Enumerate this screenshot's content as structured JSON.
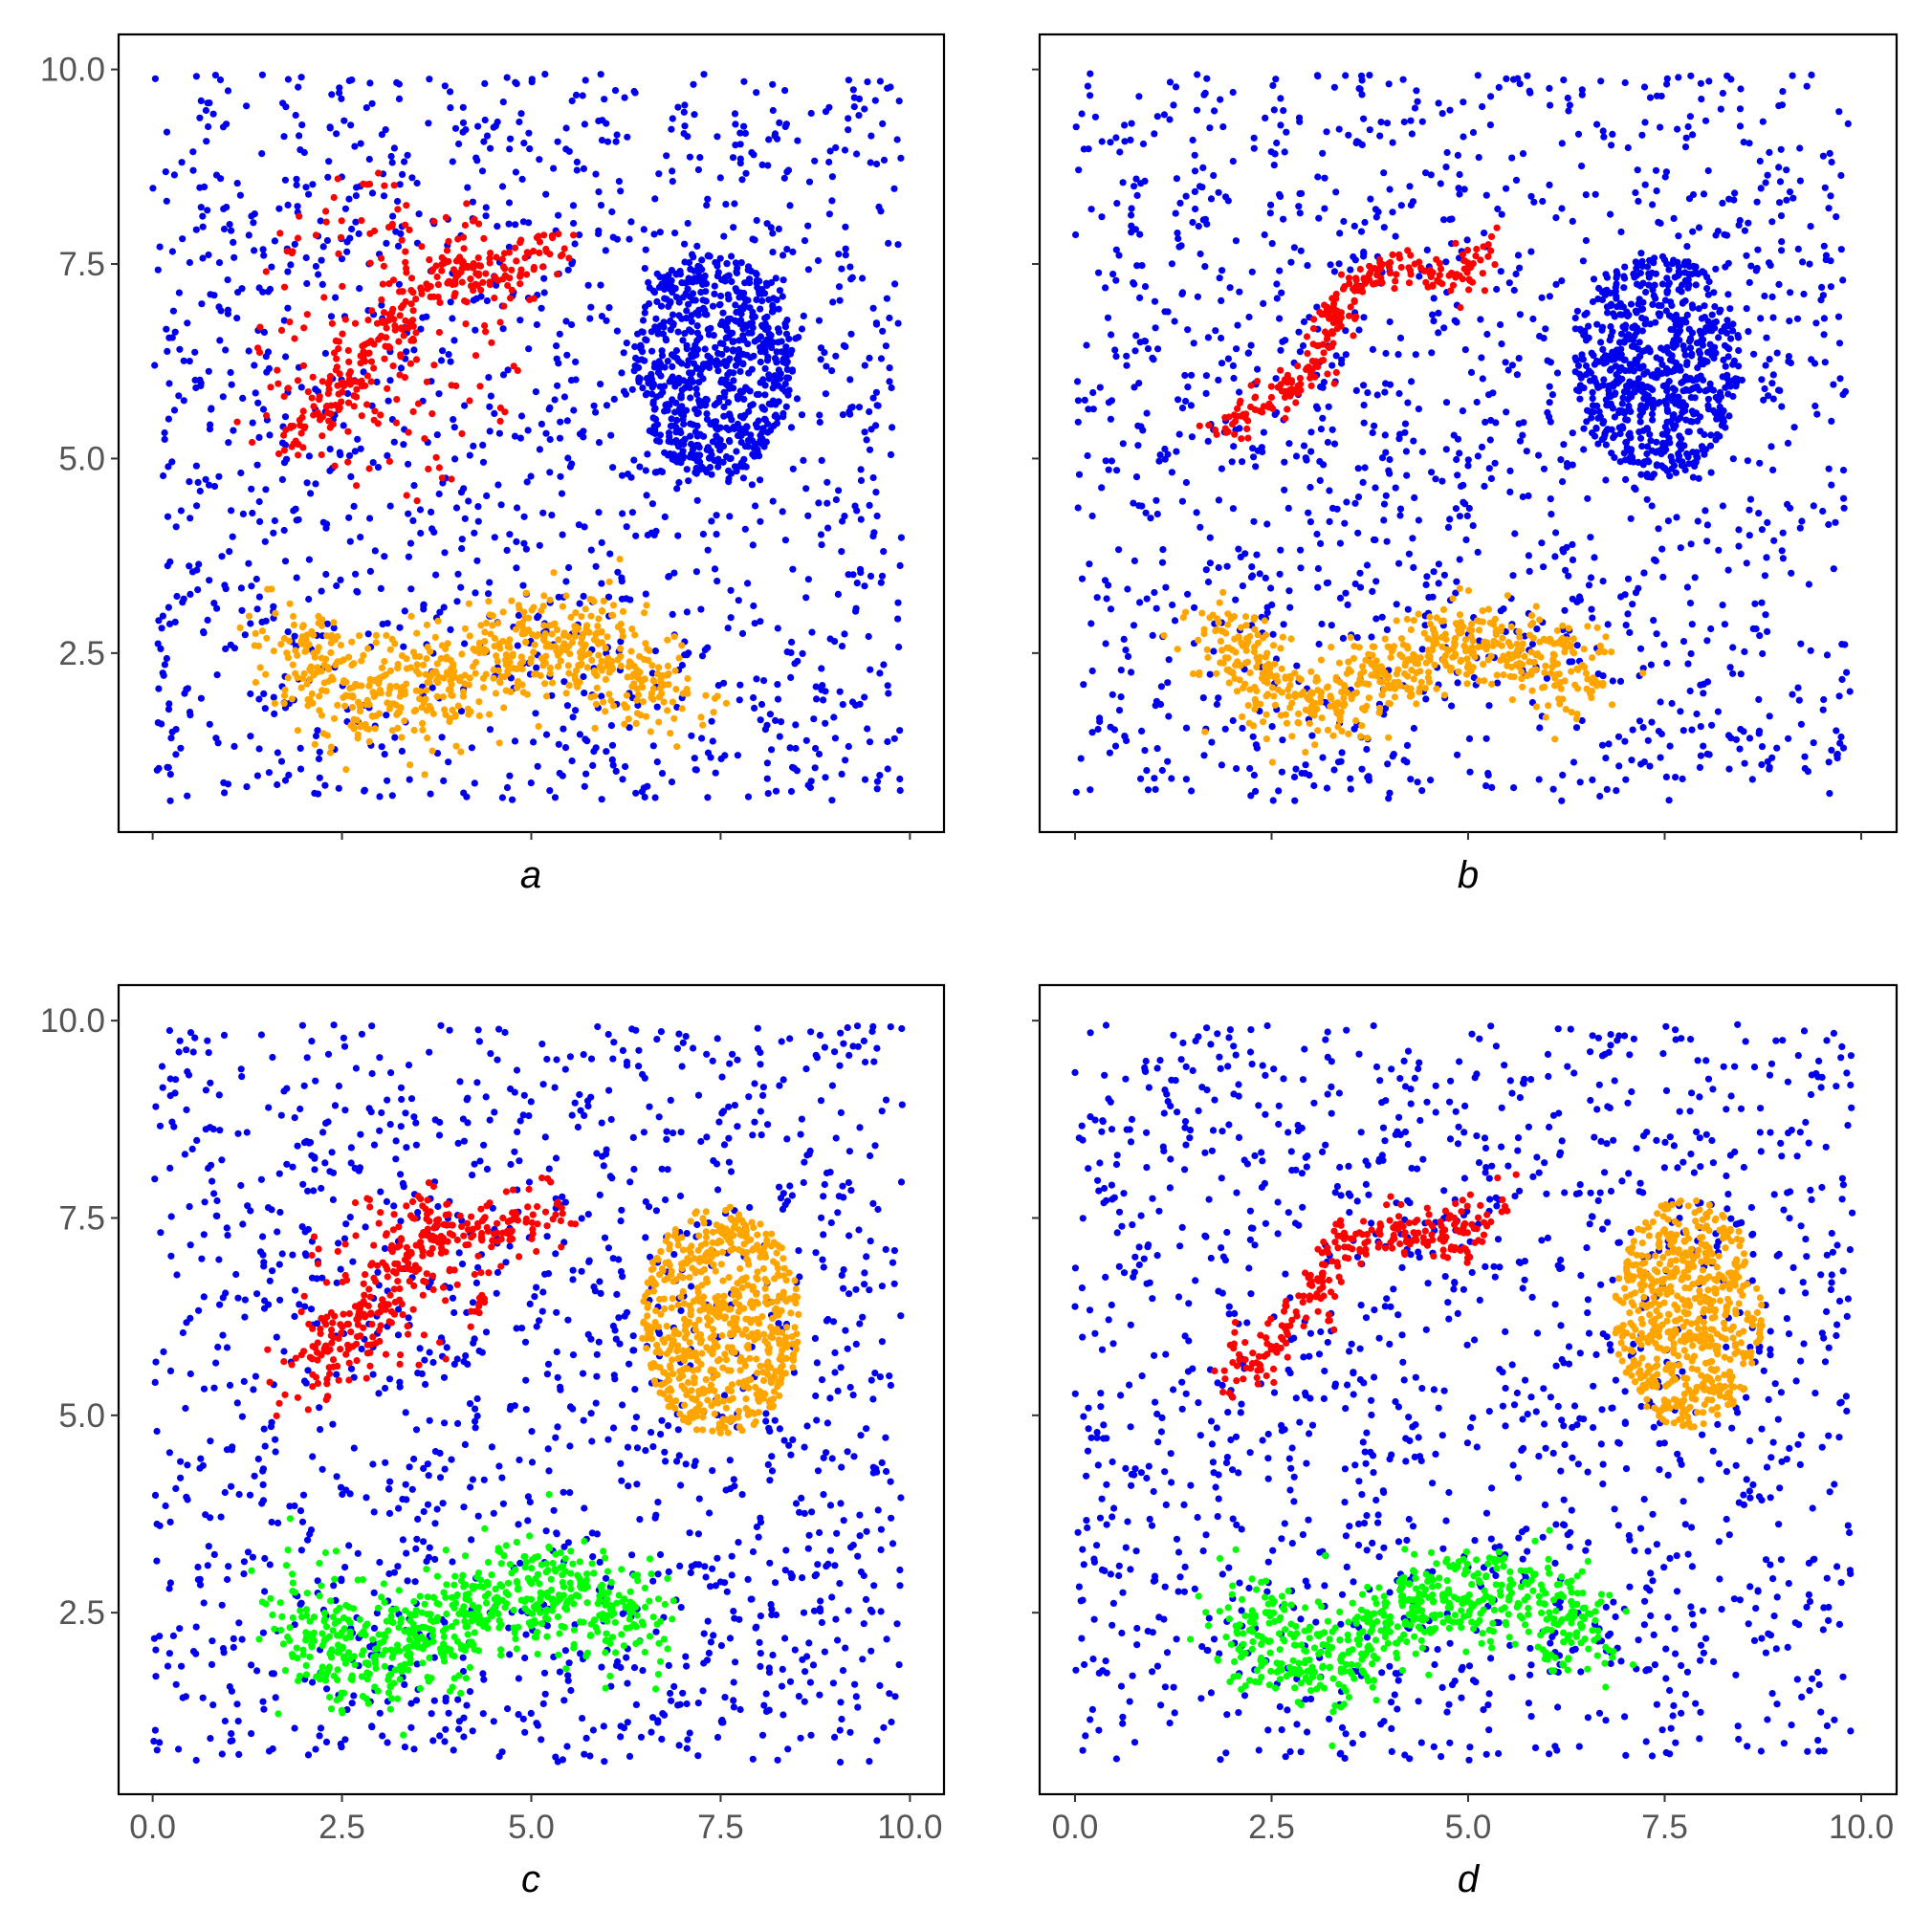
{
  "figure": {
    "panel_labels": [
      "a",
      "b",
      "c",
      "d"
    ],
    "colors": {
      "noise": "#0000EE",
      "red": "#FF0000",
      "orange": "#FFA500",
      "green": "#00FF00"
    }
  },
  "chart_data": [
    {
      "type": "scatter",
      "label": "a",
      "xlim": [
        -0.45,
        10.45
      ],
      "ylim": [
        0.2,
        10.45
      ],
      "x_ticks": [
        0.0,
        2.5,
        5.0,
        7.5,
        10.0
      ],
      "y_ticks": [
        2.5,
        5.0,
        7.5,
        10.0
      ],
      "x_tick_labels": [],
      "y_tick_labels": [
        "2.5",
        "5.0",
        "7.5",
        "10.0"
      ],
      "background_noise": {
        "color": "#0000EE",
        "count": 1450,
        "x_range": [
          0,
          9.9
        ],
        "y_range": [
          0.6,
          9.95
        ]
      },
      "clusters": [
        {
          "color": "#0000EE",
          "shape": "blob",
          "center": [
            7.4,
            6.2
          ],
          "radius": [
            1.05,
            1.45
          ],
          "count": 650
        },
        {
          "color": "#FF0000",
          "shape": "curve",
          "path": [
            [
              1.8,
              5.3
            ],
            [
              2.5,
              5.9
            ],
            [
              3.2,
              6.8
            ],
            [
              3.8,
              7.5
            ],
            [
              4.5,
              7.3
            ],
            [
              5.1,
              7.6
            ],
            [
              5.4,
              7.8
            ]
          ],
          "spread": 0.2,
          "count": 260
        },
        {
          "color": "#FF0000",
          "shape": "scatter",
          "center": [
            3.1,
            6.6
          ],
          "radius": [
            1.8,
            2.2
          ],
          "count": 150
        },
        {
          "color": "#FFA500",
          "shape": "curve",
          "path": [
            [
              1.8,
              2.8
            ],
            [
              2.3,
              2.1
            ],
            [
              3.0,
              1.8
            ],
            [
              4.0,
              2.2
            ],
            [
              5.0,
              2.7
            ],
            [
              5.7,
              2.6
            ],
            [
              6.4,
              2.2
            ],
            [
              6.9,
              1.9
            ]
          ],
          "spread": 0.35,
          "count": 650
        }
      ]
    },
    {
      "type": "scatter",
      "label": "b",
      "xlim": [
        -0.45,
        10.45
      ],
      "ylim": [
        0.2,
        10.45
      ],
      "x_ticks": [
        0.0,
        2.5,
        5.0,
        7.5,
        10.0
      ],
      "y_ticks": [
        2.5,
        5.0,
        7.5,
        10.0
      ],
      "x_tick_labels": [],
      "y_tick_labels": [],
      "background_noise": {
        "color": "#0000EE",
        "count": 1450,
        "x_range": [
          0,
          9.9
        ],
        "y_range": [
          0.6,
          9.95
        ]
      },
      "clusters": [
        {
          "color": "#0000EE",
          "shape": "blob",
          "center": [
            7.4,
            6.2
          ],
          "radius": [
            1.05,
            1.45
          ],
          "count": 650
        },
        {
          "color": "#FF0000",
          "shape": "curve",
          "path": [
            [
              1.8,
              5.3
            ],
            [
              2.3,
              5.7
            ],
            [
              2.9,
              6.0
            ],
            [
              3.2,
              6.7
            ],
            [
              3.7,
              7.4
            ],
            [
              4.3,
              7.5
            ],
            [
              4.9,
              7.3
            ],
            [
              5.3,
              7.7
            ]
          ],
          "spread": 0.12,
          "count": 260
        },
        {
          "color": "#FFA500",
          "shape": "curve",
          "path": [
            [
              1.8,
              2.9
            ],
            [
              2.3,
              2.2
            ],
            [
              3.0,
              1.8
            ],
            [
              3.8,
              2.2
            ],
            [
              4.6,
              2.6
            ],
            [
              5.3,
              2.7
            ],
            [
              6.0,
              2.4
            ],
            [
              6.6,
              2.1
            ]
          ],
          "spread": 0.28,
          "count": 600
        }
      ]
    },
    {
      "type": "scatter",
      "label": "c",
      "xlim": [
        -0.45,
        10.45
      ],
      "ylim": [
        0.2,
        10.45
      ],
      "x_ticks": [
        0.0,
        2.5,
        5.0,
        7.5,
        10.0
      ],
      "y_ticks": [
        2.5,
        5.0,
        7.5,
        10.0
      ],
      "x_tick_labels": [
        "0.0",
        "2.5",
        "5.0",
        "7.5",
        "10.0"
      ],
      "y_tick_labels": [
        "2.5",
        "5.0",
        "7.5",
        "10.0"
      ],
      "background_noise": {
        "color": "#0000EE",
        "count": 1450,
        "x_range": [
          0,
          9.9
        ],
        "y_range": [
          0.6,
          9.95
        ]
      },
      "clusters": [
        {
          "color": "#FFA500",
          "shape": "blob",
          "center": [
            7.5,
            6.2
          ],
          "radius": [
            1.05,
            1.45
          ],
          "count": 650
        },
        {
          "color": "#FF0000",
          "shape": "curve",
          "path": [
            [
              1.8,
              5.4
            ],
            [
              2.5,
              5.9
            ],
            [
              3.1,
              6.7
            ],
            [
              3.7,
              7.4
            ],
            [
              4.4,
              7.3
            ],
            [
              5.1,
              7.6
            ],
            [
              5.3,
              7.7
            ]
          ],
          "spread": 0.2,
          "count": 280
        },
        {
          "color": "#FF0000",
          "shape": "scatter",
          "center": [
            3.2,
            6.6
          ],
          "radius": [
            1.3,
            1.2
          ],
          "count": 90
        },
        {
          "color": "#00FF00",
          "shape": "curve",
          "path": [
            [
              1.8,
              2.6
            ],
            [
              2.5,
              2.0
            ],
            [
              3.2,
              1.9
            ],
            [
              4.0,
              2.4
            ],
            [
              4.9,
              2.8
            ],
            [
              5.7,
              2.7
            ],
            [
              6.5,
              2.3
            ]
          ],
          "spread": 0.35,
          "count": 650
        }
      ]
    },
    {
      "type": "scatter",
      "label": "d",
      "xlim": [
        -0.45,
        10.45
      ],
      "ylim": [
        0.2,
        10.45
      ],
      "x_ticks": [
        0.0,
        2.5,
        5.0,
        7.5,
        10.0
      ],
      "y_ticks": [
        2.5,
        5.0,
        7.5,
        10.0
      ],
      "x_tick_labels": [
        "0.0",
        "2.5",
        "5.0",
        "7.5",
        "10.0"
      ],
      "y_tick_labels": [],
      "background_noise": {
        "color": "#0000EE",
        "count": 1450,
        "x_range": [
          0,
          9.9
        ],
        "y_range": [
          0.6,
          9.95
        ]
      },
      "clusters": [
        {
          "color": "#FFA500",
          "shape": "blob",
          "center": [
            7.8,
            6.3
          ],
          "radius": [
            0.95,
            1.45
          ],
          "count": 600
        },
        {
          "color": "#FF0000",
          "shape": "curve",
          "path": [
            [
              1.8,
              5.4
            ],
            [
              2.4,
              5.8
            ],
            [
              3.0,
              6.4
            ],
            [
              3.5,
              7.3
            ],
            [
              4.2,
              7.3
            ],
            [
              4.8,
              7.2
            ],
            [
              5.3,
              7.7
            ]
          ],
          "spread": 0.17,
          "count": 260
        },
        {
          "color": "#00FF00",
          "shape": "curve",
          "path": [
            [
              2.0,
              2.6
            ],
            [
              2.6,
              2.0
            ],
            [
              3.3,
              1.8
            ],
            [
              4.1,
              2.5
            ],
            [
              5.0,
              2.8
            ],
            [
              5.7,
              2.7
            ],
            [
              6.6,
              2.2
            ]
          ],
          "spread": 0.3,
          "count": 600
        }
      ]
    }
  ]
}
